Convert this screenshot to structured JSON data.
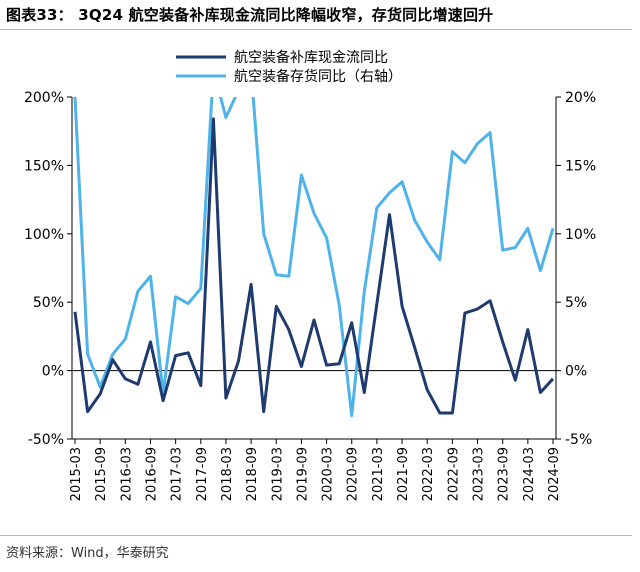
{
  "header": {
    "title": "图表33： 3Q24 航空装备补库现金流同比降幅收窄，存货同比增速回升"
  },
  "footer": {
    "source": "资料来源：Wind，华泰研究"
  },
  "chart_data": {
    "type": "line",
    "title": "图表33： 3Q24 航空装备补库现金流同比降幅收窄，存货同比增速回升",
    "x_ticks": [
      "2015-03",
      "2015-09",
      "2016-03",
      "2016-09",
      "2017-03",
      "2017-09",
      "2018-03",
      "2018-09",
      "2019-03",
      "2019-09",
      "2020-03",
      "2020-09",
      "2021-03",
      "2021-09",
      "2022-03",
      "2022-09",
      "2023-03",
      "2023-09",
      "2024-03",
      "2024-09"
    ],
    "x": [
      "2015-03",
      "2015-06",
      "2015-09",
      "2015-12",
      "2016-03",
      "2016-06",
      "2016-09",
      "2016-12",
      "2017-03",
      "2017-06",
      "2017-09",
      "2017-12",
      "2018-03",
      "2018-06",
      "2018-09",
      "2018-12",
      "2019-03",
      "2019-06",
      "2019-09",
      "2019-12",
      "2020-03",
      "2020-06",
      "2020-09",
      "2020-12",
      "2021-03",
      "2021-06",
      "2021-09",
      "2021-12",
      "2022-03",
      "2022-06",
      "2022-09",
      "2022-12",
      "2023-03",
      "2023-06",
      "2023-09",
      "2023-12",
      "2024-03",
      "2024-06",
      "2024-09"
    ],
    "left_axis": {
      "ylim": [
        -50,
        200
      ],
      "ticks": [
        "-50%",
        "0%",
        "50%",
        "100%",
        "150%",
        "200%"
      ],
      "tick_values": [
        -50,
        0,
        50,
        100,
        150,
        200
      ]
    },
    "right_axis": {
      "ylim": [
        -5,
        20
      ],
      "ticks": [
        "-5%",
        "0%",
        "5%",
        "10%",
        "15%",
        "20%"
      ],
      "tick_values": [
        -5,
        0,
        5,
        10,
        15,
        20
      ]
    },
    "legend_placement": "top-center",
    "grid": false,
    "series": [
      {
        "name": "航空装备补库现金流同比",
        "axis": "left",
        "color": "#1f3a6e",
        "values": [
          43,
          -30,
          -17,
          8,
          -6,
          -10,
          21,
          -22,
          11,
          13,
          -11,
          184,
          -20,
          7,
          63,
          -30,
          47,
          30,
          3,
          37,
          4,
          5,
          35,
          -16,
          49,
          114,
          47,
          17,
          -14,
          -31,
          -31,
          42,
          45,
          51,
          21,
          -7,
          30,
          -16,
          -6
        ]
      },
      {
        "name": "航空装备存货同比（右轴）",
        "axis": "right",
        "color": "#4fb3ea",
        "values": [
          20,
          1.2,
          -1.2,
          1.2,
          2.3,
          5.8,
          6.9,
          -1.7,
          5.4,
          4.9,
          6,
          22,
          18.5,
          20.5,
          22,
          10,
          7,
          6.9,
          14.3,
          11.5,
          9.7,
          4.8,
          -3.3,
          5.8,
          11.9,
          13,
          13.8,
          11,
          9.4,
          8.1,
          16,
          15.2,
          16.6,
          17.4,
          8.8,
          9,
          10.4,
          7.3,
          10.4
        ]
      }
    ]
  }
}
